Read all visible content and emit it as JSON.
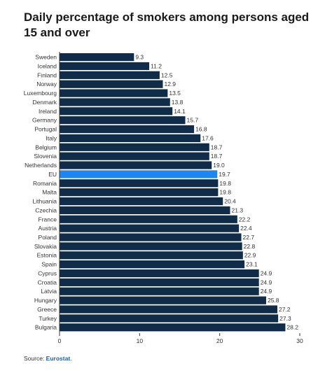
{
  "title": "Daily percentage of smokers among persons aged 15 and over",
  "source": {
    "prefix": "Source:",
    "name": "Eurostat",
    "suffix": "."
  },
  "chart_data": {
    "type": "bar",
    "orientation": "horizontal",
    "title": "Daily percentage of smokers among persons aged 15 and over",
    "xlabel": "",
    "ylabel": "",
    "xlim": [
      0,
      30
    ],
    "x_ticks": [
      0,
      10,
      20,
      30
    ],
    "grid": false,
    "colors": {
      "bar": "#102c48",
      "highlight": "#1f86f0"
    },
    "highlight_category": "EU",
    "categories": [
      "Sweden",
      "Iceland",
      "Finland",
      "Norway",
      "Luxembourg",
      "Denmark",
      "Ireland",
      "Germany",
      "Portugal",
      "Italy",
      "Belgium",
      "Slovenia",
      "Netherlands",
      "EU",
      "Romania",
      "Malta",
      "Lithuania",
      "Czechia",
      "France",
      "Austria",
      "Poland",
      "Slovakia",
      "Estonia",
      "Spain",
      "Cyprus",
      "Croatia",
      "Latvia",
      "Hungary",
      "Greece",
      "Turkey",
      "Bulgaria"
    ],
    "values": [
      9.3,
      11.2,
      12.5,
      12.9,
      13.5,
      13.8,
      14.1,
      15.7,
      16.8,
      17.6,
      18.7,
      18.7,
      19.0,
      19.7,
      19.8,
      19.8,
      20.4,
      21.3,
      22.2,
      22.4,
      22.7,
      22.8,
      22.9,
      23.1,
      24.9,
      24.9,
      24.9,
      25.8,
      27.2,
      27.3,
      28.2
    ],
    "value_labels": [
      "9.3",
      "11.2",
      "12.5",
      "12.9",
      "13.5",
      "13.8",
      "14.1",
      "15.7",
      "16.8",
      "17.6",
      "18.7",
      "18.7",
      "19.0",
      "19.7",
      "19.8",
      "19.8",
      "20.4",
      "21.3",
      "22.2",
      "22.4",
      "22.7",
      "22.8",
      "22.9",
      "23.1",
      "24.9",
      "24.9",
      "24.9",
      "25.8",
      "27.2",
      "27.3",
      "28.2"
    ]
  }
}
